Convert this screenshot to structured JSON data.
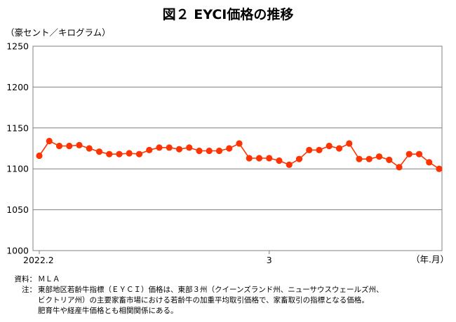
{
  "title": "図２ EYCI価格の推移",
  "unit_label": "（豪セント／キログラム）",
  "notes": {
    "source_label": "資料：",
    "source_text": "ＭＬＡ",
    "note_label": "注：",
    "note_lines": [
      "東部地区若齢牛指標（ＥＹＣＩ）価格は、東部３州（クイーンズランド州、ニューサウスウェールズ州、",
      "ビクトリア州）の主要家畜市場における若齢牛の加重平均取引価格で、家畜取引の指標となる価格。",
      "肥育牛や経産牛価格とも相関関係にある。"
    ]
  },
  "chart_data": {
    "type": "line",
    "ylim": [
      1000,
      1250
    ],
    "yticks": [
      1000,
      1050,
      1100,
      1150,
      1200,
      1250
    ],
    "x_tick_labels": [
      {
        "label": "2022.2",
        "index": 0
      },
      {
        "label": "3",
        "index": 23
      }
    ],
    "x_unit_label": "（年.月）",
    "grid": true,
    "series": [
      {
        "color": "#ff3300",
        "values": [
          1116,
          1134,
          1128,
          1128,
          1129,
          1125,
          1121,
          1118,
          1118,
          1119,
          1118,
          1123,
          1126,
          1126,
          1124,
          1126,
          1122,
          1122,
          1122,
          1125,
          1131,
          1113,
          1113,
          1113,
          1110,
          1105,
          1112,
          1123,
          1123,
          1128,
          1125,
          1131,
          1112,
          1112,
          1115,
          1111,
          1102,
          1118,
          1118,
          1108,
          1100
        ]
      }
    ]
  }
}
